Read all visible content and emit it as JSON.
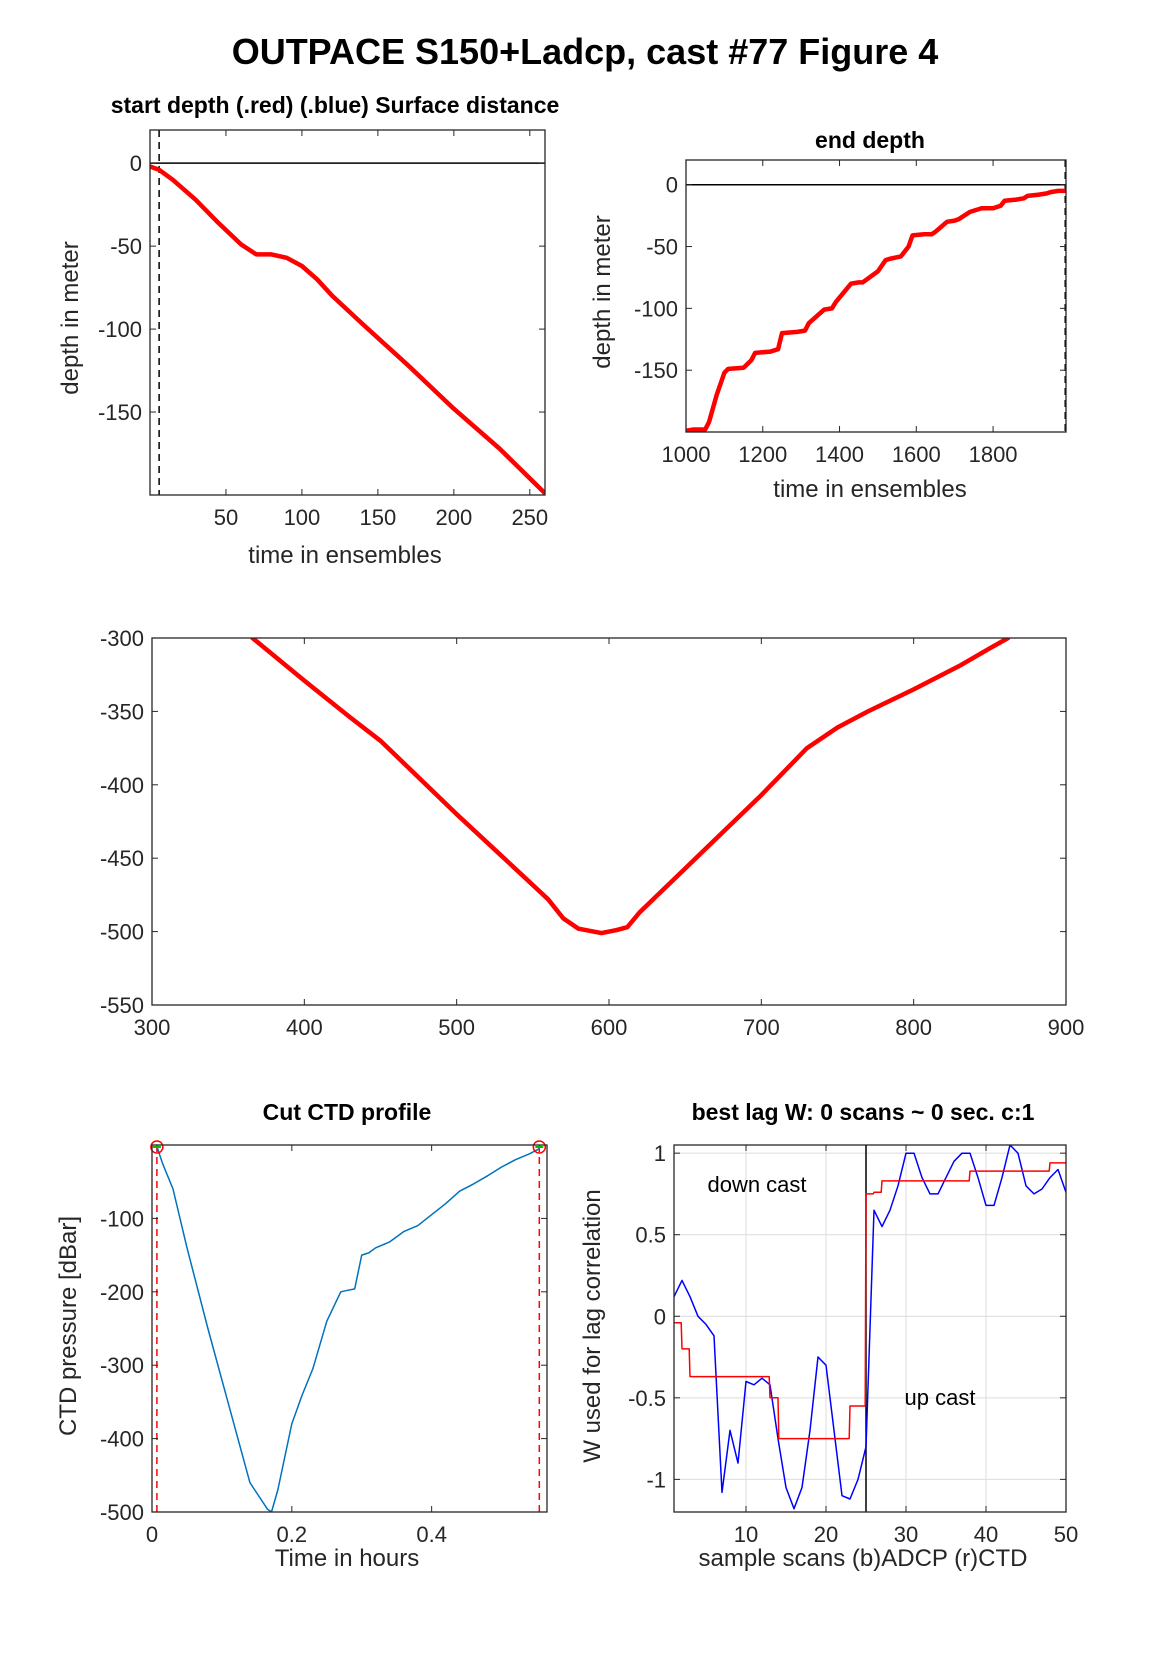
{
  "figure": {
    "title": "OUTPACE S150+Ladcp, cast #77    Figure 4"
  },
  "chart_data": [
    {
      "id": "start_depth",
      "type": "line",
      "title": "start depth (.red) (.blue) Surface distance",
      "xlabel": "time in ensembles",
      "ylabel": "depth in meter",
      "xlim": [
        0,
        260
      ],
      "ylim": [
        -200,
        20
      ],
      "xticks": [
        50,
        100,
        150,
        200,
        250
      ],
      "yticks": [
        0,
        -50,
        -100,
        -150
      ],
      "grid": false,
      "reference_lines": {
        "horizontal_y": 0,
        "vertical_dashed_x": 6
      },
      "series": [
        {
          "color": "#ff0000",
          "x": [
            0,
            6,
            15,
            30,
            45,
            60,
            70,
            80,
            90,
            100,
            110,
            120,
            140,
            170,
            200,
            230,
            260
          ],
          "y": [
            -2,
            -4,
            -10,
            -22,
            -36,
            -49,
            -55,
            -55,
            -57,
            -62,
            -70,
            -80,
            -97,
            -122,
            -148,
            -172,
            -199
          ]
        }
      ]
    },
    {
      "id": "end_depth",
      "type": "line",
      "title": "end depth",
      "xlabel": "time in ensembles",
      "ylabel": "depth in meter",
      "xlim": [
        1000,
        1990
      ],
      "ylim": [
        -200,
        20
      ],
      "xticks": [
        1000,
        1200,
        1400,
        1600,
        1800
      ],
      "yticks": [
        0,
        -50,
        -100,
        -150
      ],
      "grid": false,
      "reference_lines": {
        "horizontal_y": 0,
        "vertical_dashed_x": 1988
      },
      "series": [
        {
          "color": "#ff0000",
          "x": [
            1000,
            1020,
            1050,
            1060,
            1080,
            1100,
            1110,
            1150,
            1170,
            1180,
            1220,
            1240,
            1250,
            1290,
            1310,
            1320,
            1360,
            1380,
            1390,
            1430,
            1450,
            1460,
            1500,
            1520,
            1530,
            1560,
            1580,
            1590,
            1620,
            1640,
            1650,
            1680,
            1700,
            1710,
            1740,
            1760,
            1770,
            1800,
            1820,
            1830,
            1860,
            1880,
            1890,
            1920,
            1940,
            1950,
            1970,
            1990
          ],
          "y": [
            -199,
            -198,
            -198,
            -192,
            -170,
            -152,
            -149,
            -148,
            -142,
            -136,
            -135,
            -133,
            -120,
            -119,
            -118,
            -112,
            -101,
            -100,
            -95,
            -80,
            -79,
            -79,
            -70,
            -61,
            -60,
            -58,
            -50,
            -41,
            -40,
            -40,
            -38,
            -30,
            -29,
            -28,
            -22,
            -20,
            -19,
            -19,
            -17,
            -13,
            -12,
            -11,
            -9,
            -8,
            -7,
            -6,
            -5,
            -5
          ]
        }
      ]
    },
    {
      "id": "full_depth",
      "type": "line",
      "title": "",
      "xlabel": "",
      "ylabel": "",
      "xlim": [
        300,
        900
      ],
      "ylim": [
        -550,
        -300
      ],
      "xticks": [
        300,
        400,
        500,
        600,
        700,
        800,
        900
      ],
      "yticks": [
        -300,
        -350,
        -400,
        -450,
        -500,
        -550
      ],
      "grid": false,
      "series": [
        {
          "color": "#ff0000",
          "x": [
            366,
            400,
            430,
            450,
            470,
            500,
            530,
            560,
            570,
            580,
            595,
            605,
            612,
            620,
            640,
            670,
            700,
            730,
            750,
            770,
            800,
            830,
            850,
            862
          ],
          "y": [
            -300,
            -329,
            -354,
            -370,
            -390,
            -420,
            -449,
            -478,
            -491,
            -498,
            -501,
            -499,
            -497,
            -487,
            -467,
            -437,
            -407,
            -375,
            -361,
            -350,
            -335,
            -319,
            -307,
            -300
          ]
        }
      ]
    },
    {
      "id": "cut_ctd_profile",
      "type": "line",
      "title": "Cut CTD profile",
      "xlabel": "Time in hours",
      "ylabel": "CTD pressure [dBar]",
      "xlim": [
        0,
        0.565
      ],
      "ylim": [
        -500,
        0
      ],
      "xticks": [
        0,
        0.2,
        0.4
      ],
      "yticks": [
        -100,
        -200,
        -300,
        -400,
        -500
      ],
      "grid": false,
      "cut_markers_x": [
        0.007,
        0.554
      ],
      "series": [
        {
          "color": "#0072bd",
          "x": [
            0.007,
            0.015,
            0.03,
            0.05,
            0.08,
            0.11,
            0.14,
            0.165,
            0.171,
            0.18,
            0.2,
            0.215,
            0.23,
            0.25,
            0.27,
            0.28,
            0.29,
            0.3,
            0.31,
            0.32,
            0.34,
            0.36,
            0.38,
            0.4,
            0.42,
            0.44,
            0.46,
            0.48,
            0.5,
            0.52,
            0.54,
            0.554
          ],
          "y": [
            -2,
            -25,
            -60,
            -140,
            -250,
            -355,
            -460,
            -496,
            -500,
            -470,
            -380,
            -340,
            -305,
            -240,
            -200,
            -198,
            -196,
            -150,
            -147,
            -140,
            -132,
            -118,
            -110,
            -95,
            -80,
            -63,
            -53,
            -42,
            -30,
            -20,
            -12,
            -5
          ]
        }
      ]
    },
    {
      "id": "best_lag",
      "type": "line",
      "title": "best lag W: 0 scans ~ 0 sec.  c:1",
      "xlabel": "sample scans (b)ADCP (r)CTD",
      "ylabel": "W used for lag correlation",
      "xlim": [
        1,
        50
      ],
      "ylim": [
        -1.2,
        1.05
      ],
      "xticks": [
        10,
        20,
        30,
        40,
        50
      ],
      "yticks": [
        1,
        0.5,
        0,
        -0.5,
        -1
      ],
      "grid": true,
      "divider_x": 25,
      "annotations": [
        "down cast",
        "up cast"
      ],
      "series": [
        {
          "color": "#0000ff",
          "x": [
            1,
            2,
            3,
            4,
            5,
            6,
            7,
            8,
            9,
            10,
            11,
            12,
            13,
            14,
            15,
            16,
            17,
            18,
            19,
            20,
            21,
            22,
            23,
            24,
            25,
            26,
            27,
            28,
            29,
            30,
            31,
            32,
            33,
            34,
            35,
            36,
            37,
            38,
            39,
            40,
            41,
            42,
            43,
            44,
            45,
            46,
            47,
            48,
            49,
            50
          ],
          "y": [
            0.12,
            0.22,
            0.12,
            0.0,
            -0.05,
            -0.12,
            -1.08,
            -0.7,
            -0.9,
            -0.4,
            -0.42,
            -0.38,
            -0.42,
            -0.75,
            -1.05,
            -1.18,
            -1.05,
            -0.7,
            -0.25,
            -0.3,
            -0.7,
            -1.1,
            -1.12,
            -1.0,
            -0.8,
            0.65,
            0.55,
            0.65,
            0.8,
            1.0,
            1.0,
            0.85,
            0.75,
            0.75,
            0.85,
            0.95,
            1.0,
            1.0,
            0.85,
            0.68,
            0.68,
            0.85,
            1.05,
            1.0,
            0.8,
            0.75,
            0.78,
            0.85,
            0.9,
            0.76
          ]
        },
        {
          "color": "#ff0000",
          "x": [
            1,
            1.9,
            2,
            2.9,
            3,
            12.9,
            13,
            14,
            14.1,
            22.9,
            23,
            24.9,
            25,
            25.9,
            26,
            26.9,
            27,
            27.9,
            28,
            31.9,
            32,
            37.9,
            38,
            47.9,
            48,
            50
          ],
          "y": [
            -0.04,
            -0.04,
            -0.2,
            -0.2,
            -0.37,
            -0.37,
            -0.5,
            -0.5,
            -0.75,
            -0.75,
            -0.55,
            -0.55,
            0.75,
            0.75,
            0.76,
            0.76,
            0.83,
            0.83,
            0.83,
            0.83,
            0.83,
            0.83,
            0.89,
            0.89,
            0.94,
            0.94
          ]
        }
      ]
    }
  ]
}
